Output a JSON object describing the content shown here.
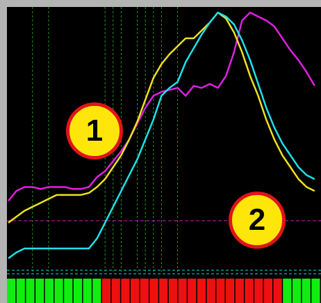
{
  "callouts": {
    "first": "1",
    "second": "2"
  },
  "colors": {
    "frame": "#b4b4b4",
    "background": "#000000",
    "gridline": "#1f9a1f",
    "cyan_vertical": "#00e0e0",
    "magenta_line": "#e020e0",
    "yellow_line": "#f0e020",
    "cyan_line": "#20e0e8",
    "level_line": "#c020c0",
    "histogram_bull": "#10ee10",
    "histogram_bear": "#ee1010",
    "callout_fill": "#ffe60a",
    "callout_border": "#e0141a"
  },
  "chart_data": {
    "type": "line",
    "grid": "vertical-dashed",
    "series": [
      {
        "color": "#e020e0",
        "x": [
          0,
          1,
          2,
          3,
          4,
          5,
          6,
          7,
          8,
          9,
          10,
          11,
          12,
          13,
          14,
          15,
          16,
          17,
          18,
          19,
          20,
          21,
          22,
          23,
          24,
          25,
          26,
          27,
          28,
          29,
          30,
          31,
          32,
          33,
          34,
          35,
          36,
          37,
          38
        ],
        "values": [
          0.05,
          0.1,
          0.12,
          0.12,
          0.11,
          0.12,
          0.12,
          0.12,
          0.11,
          0.11,
          0.12,
          0.17,
          0.2,
          0.25,
          0.3,
          0.36,
          0.44,
          0.52,
          0.58,
          0.6,
          0.61,
          0.62,
          0.58,
          0.63,
          0.62,
          0.64,
          0.62,
          0.68,
          0.8,
          0.96,
          1.0,
          0.98,
          0.96,
          0.93,
          0.87,
          0.81,
          0.76,
          0.7,
          0.63
        ]
      },
      {
        "color": "#f0e020",
        "x": [
          0,
          1,
          2,
          3,
          4,
          5,
          6,
          7,
          8,
          9,
          10,
          11,
          12,
          13,
          14,
          15,
          16,
          17,
          18,
          19,
          20,
          21,
          22,
          23,
          24,
          25,
          26,
          27,
          28,
          29,
          30,
          31,
          32,
          33,
          34,
          35,
          36,
          37,
          38
        ],
        "values": [
          -0.06,
          -0.03,
          0.0,
          0.02,
          0.04,
          0.06,
          0.08,
          0.08,
          0.08,
          0.08,
          0.09,
          0.12,
          0.16,
          0.22,
          0.28,
          0.36,
          0.45,
          0.56,
          0.67,
          0.74,
          0.79,
          0.83,
          0.87,
          0.87,
          0.91,
          0.95,
          1.0,
          0.97,
          0.9,
          0.8,
          0.68,
          0.58,
          0.46,
          0.36,
          0.28,
          0.22,
          0.16,
          0.12,
          0.1
        ]
      },
      {
        "color": "#20e0e8",
        "x": [
          0,
          1,
          2,
          3,
          4,
          5,
          6,
          7,
          8,
          9,
          10,
          11,
          12,
          13,
          14,
          15,
          16,
          17,
          18,
          19,
          20,
          21,
          22,
          23,
          24,
          25,
          26,
          27,
          28,
          29,
          30,
          31,
          32,
          33,
          34,
          35,
          36,
          37,
          38
        ],
        "values": [
          -0.24,
          -0.21,
          -0.19,
          -0.19,
          -0.19,
          -0.19,
          -0.19,
          -0.19,
          -0.19,
          -0.19,
          -0.19,
          -0.14,
          -0.06,
          0.02,
          0.1,
          0.18,
          0.26,
          0.36,
          0.46,
          0.58,
          0.62,
          0.65,
          0.75,
          0.82,
          0.89,
          0.95,
          1.0,
          0.98,
          0.94,
          0.86,
          0.76,
          0.64,
          0.52,
          0.42,
          0.34,
          0.28,
          0.22,
          0.18,
          0.16
        ]
      }
    ],
    "level": -0.05,
    "vertical_gridlines": [
      3,
      5,
      12,
      13,
      14,
      16,
      17,
      18,
      19,
      21
    ],
    "peak_marker": 21,
    "histogram": [
      "bull",
      "bull",
      "bull",
      "bull",
      "bull",
      "bull",
      "bull",
      "bull",
      "bull",
      "bull",
      "bear",
      "bear",
      "bear",
      "bear",
      "bear",
      "bear",
      "bear",
      "bear",
      "bear",
      "bear",
      "bear",
      "bear",
      "bear",
      "bear",
      "bear",
      "bear",
      "bear",
      "bear",
      "bear",
      "bull",
      "bull",
      "bull",
      "bull"
    ]
  }
}
